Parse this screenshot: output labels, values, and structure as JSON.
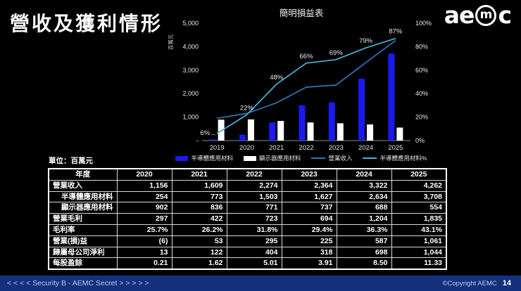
{
  "page": {
    "title": "營收及獲利情形",
    "unit_label": "單位：百萬元"
  },
  "logo": {
    "left": "ae",
    "circled": "m",
    "right": "c"
  },
  "chart_data": {
    "type": "bar",
    "title": "簡明損益表",
    "categories": [
      "2019",
      "2020",
      "2021",
      "2022",
      "2023",
      "2024",
      "2025"
    ],
    "bar_series": [
      {
        "name": "半導體應用材料",
        "color": "#1a1af0",
        "values": [
          57,
          254,
          773,
          1503,
          1627,
          2634,
          3708
        ]
      },
      {
        "name": "顯示器應用材料",
        "color": "#ffffff",
        "values": [
          890,
          902,
          836,
          771,
          737,
          688,
          554
        ]
      }
    ],
    "line_series": [
      {
        "name": "營業收入",
        "axis": "left",
        "color": "#2f75b5",
        "values": [
          950,
          1156,
          1609,
          2274,
          2364,
          3322,
          4262
        ],
        "labels": null
      },
      {
        "name": "半導體應用材料%",
        "axis": "right",
        "color": "#44b3e1",
        "values": [
          6,
          22,
          48,
          66,
          69,
          79,
          87
        ],
        "labels": [
          "6%",
          "22%",
          "48%",
          "66%",
          "69%",
          "79%",
          "87%"
        ]
      }
    ],
    "left_axis": {
      "label": "百萬元",
      "min": 0,
      "max": 5000,
      "ticks": [
        "5,000",
        "4,000",
        "3,000",
        "2,000",
        "1,000",
        "-"
      ]
    },
    "right_axis": {
      "min": 0,
      "max": 100,
      "ticks": [
        "100%",
        "80%",
        "60%",
        "40%",
        "20%",
        "0%"
      ]
    },
    "grid": false,
    "legend_position": "bottom"
  },
  "table": {
    "header": [
      "年度",
      "2020",
      "2021",
      "2022",
      "2023",
      "2024",
      "2025"
    ],
    "rows": [
      {
        "label": "營業收入",
        "indent": false,
        "values": [
          "1,156",
          "1,609",
          "2,274",
          "2,364",
          "3,322",
          "4,262"
        ]
      },
      {
        "label": "半導體應用材料",
        "indent": true,
        "values": [
          "254",
          "773",
          "1,503",
          "1,627",
          "2,634",
          "3,708"
        ]
      },
      {
        "label": "顯示器應用材料",
        "indent": true,
        "values": [
          "902",
          "836",
          "771",
          "737",
          "688",
          "554"
        ]
      },
      {
        "label": "營業毛利",
        "indent": false,
        "values": [
          "297",
          "422",
          "723",
          "694",
          "1,204",
          "1,835"
        ]
      },
      {
        "label": "毛利率",
        "indent": false,
        "values": [
          "25.7%",
          "26.2%",
          "31.8%",
          "29.4%",
          "36.3%",
          "43.1%"
        ]
      },
      {
        "label": "營業(損)益",
        "indent": false,
        "values": [
          "(6)",
          "53",
          "295",
          "225",
          "587",
          "1,061"
        ]
      },
      {
        "label": "歸屬母公司淨利",
        "indent": false,
        "values": [
          "13",
          "122",
          "404",
          "318",
          "698",
          "1,044"
        ]
      },
      {
        "label": "每股盈餘",
        "indent": false,
        "values": [
          "0.21",
          "1.62",
          "5.01",
          "3.91",
          "8.50",
          "11.33"
        ]
      }
    ]
  },
  "footer": {
    "left": "< < < < Security B - AEMC Secret > > > > >",
    "copyright": "©Copyright AEMC",
    "page_number": "14"
  }
}
